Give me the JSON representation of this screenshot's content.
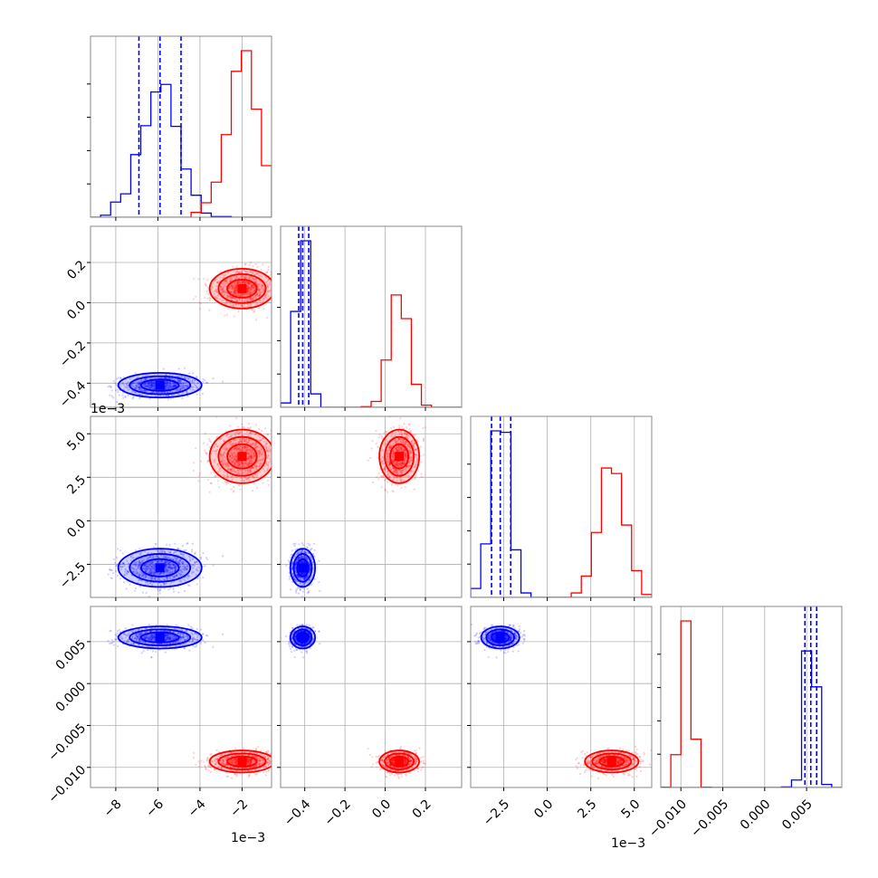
{
  "chart_data": {
    "type": "corner",
    "parameters": [
      {
        "id": "p0",
        "range": [
          -9.2,
          -0.6
        ],
        "display_scale": "1e-3",
        "ticks": [
          "−8",
          "−6",
          "−4",
          "−2"
        ],
        "tick_values": [
          -8,
          -6,
          -4,
          -2
        ]
      },
      {
        "id": "p1",
        "range": [
          -0.52,
          0.38
        ],
        "ticks": [
          "−0.4",
          "−0.2",
          "0.0",
          "0.2"
        ],
        "tick_values": [
          -0.4,
          -0.2,
          0.0,
          0.2
        ]
      },
      {
        "id": "p2",
        "range": [
          -4.4,
          6.0
        ],
        "display_scale": "1e-3",
        "ticks": [
          "−2.5",
          "0.0",
          "2.5",
          "5.0"
        ],
        "tick_values": [
          -2.5,
          0.0,
          2.5,
          5.0
        ]
      },
      {
        "id": "p3",
        "range": [
          -0.0124,
          0.0092
        ],
        "ticks": [
          "−0.010",
          "−0.005",
          "0.000",
          "0.005"
        ],
        "tick_values": [
          -0.01,
          -0.005,
          0.0,
          0.005
        ]
      }
    ],
    "scale_label": "1e−3",
    "series": [
      {
        "color": "#0000ff",
        "means": [
          -5.9,
          -0.41,
          -2.7,
          0.0055
        ],
        "stds": [
          0.9,
          0.028,
          0.5,
          0.0006
        ],
        "quantiles": [
          [
            -6.9,
            -5.9,
            -4.9
          ],
          [
            -0.43,
            -0.41,
            -0.38
          ],
          [
            -3.2,
            -2.7,
            -2.1
          ],
          [
            0.0048,
            0.0055,
            0.0062
          ]
        ]
      },
      {
        "color": "#ff0000",
        "means": [
          -2.0,
          0.07,
          3.7,
          -0.0093
        ],
        "stds": [
          0.7,
          0.045,
          0.7,
          0.0006
        ]
      }
    ],
    "grid": true,
    "title": "",
    "xlabel": "",
    "ylabel": ""
  }
}
